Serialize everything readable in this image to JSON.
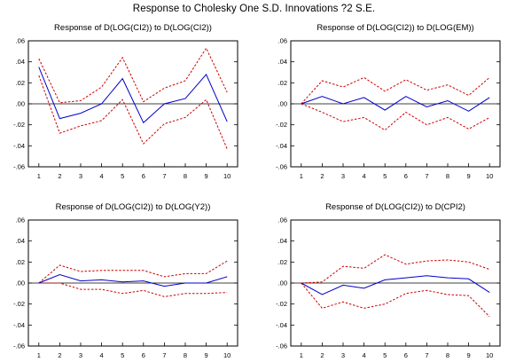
{
  "title": "Response to Cholesky One S.D. Innovations ?2 S.E.",
  "chart_data": [
    {
      "type": "line",
      "title": "Response of D(LOG(CI2)) to D(LOG(CI2))",
      "x": [
        1,
        2,
        3,
        4,
        5,
        6,
        7,
        8,
        9,
        10
      ],
      "x_ticks": [
        "1",
        "2",
        "3",
        "4",
        "5",
        "6",
        "7",
        "8",
        "9",
        "10"
      ],
      "y_ticks": [
        ".06",
        ".04",
        ".02",
        ".00",
        "-.02",
        "-.04",
        "-.06"
      ],
      "ylim": [
        -0.06,
        0.06
      ],
      "grid": false,
      "series": [
        {
          "color": "#0000cc",
          "dashed": false,
          "values": [
            0.035,
            -0.014,
            -0.009,
            0.0,
            0.024,
            -0.018,
            0.0,
            0.005,
            0.028,
            -0.017
          ]
        },
        {
          "color": "#cc0000",
          "dashed": true,
          "values": [
            0.043,
            0.001,
            0.003,
            0.016,
            0.044,
            0.002,
            0.015,
            0.022,
            0.053,
            0.011
          ]
        },
        {
          "color": "#cc0000",
          "dashed": true,
          "values": [
            0.027,
            -0.028,
            -0.021,
            -0.016,
            0.004,
            -0.038,
            -0.019,
            -0.013,
            0.004,
            -0.043
          ]
        }
      ]
    },
    {
      "type": "line",
      "title": "Response of D(LOG(CI2)) to D(LOG(EM))",
      "x": [
        1,
        2,
        3,
        4,
        5,
        6,
        7,
        8,
        9,
        10
      ],
      "x_ticks": [
        "1",
        "2",
        "3",
        "4",
        "5",
        "6",
        "7",
        "8",
        "9",
        "10"
      ],
      "y_ticks": [
        ".06",
        ".04",
        ".02",
        ".00",
        "-.02",
        "-.04",
        "-.06"
      ],
      "ylim": [
        -0.06,
        0.06
      ],
      "grid": false,
      "series": [
        {
          "color": "#0000cc",
          "dashed": false,
          "values": [
            0.0,
            0.007,
            0.0,
            0.006,
            -0.006,
            0.007,
            -0.003,
            0.003,
            -0.007,
            0.006
          ]
        },
        {
          "color": "#cc0000",
          "dashed": true,
          "values": [
            0.0,
            0.022,
            0.016,
            0.025,
            0.012,
            0.023,
            0.013,
            0.018,
            0.008,
            0.025
          ]
        },
        {
          "color": "#cc0000",
          "dashed": true,
          "values": [
            0.0,
            -0.008,
            -0.017,
            -0.013,
            -0.025,
            -0.008,
            -0.02,
            -0.013,
            -0.024,
            -0.013
          ]
        }
      ]
    },
    {
      "type": "line",
      "title": "Response of D(LOG(CI2)) to D(LOG(Y2))",
      "x": [
        1,
        2,
        3,
        4,
        5,
        6,
        7,
        8,
        9,
        10
      ],
      "x_ticks": [
        "1",
        "2",
        "3",
        "4",
        "5",
        "6",
        "7",
        "8",
        "9",
        "10"
      ],
      "y_ticks": [
        ".06",
        ".04",
        ".02",
        ".00",
        "-.02",
        "-.04",
        "-.06"
      ],
      "ylim": [
        -0.06,
        0.06
      ],
      "grid": false,
      "series": [
        {
          "color": "#0000cc",
          "dashed": false,
          "values": [
            0.0,
            0.008,
            0.002,
            0.003,
            0.001,
            0.002,
            -0.003,
            0.0,
            0.0,
            0.006
          ]
        },
        {
          "color": "#cc0000",
          "dashed": true,
          "values": [
            0.0,
            0.017,
            0.011,
            0.012,
            0.012,
            0.012,
            0.006,
            0.009,
            0.009,
            0.021
          ]
        },
        {
          "color": "#cc0000",
          "dashed": true,
          "values": [
            0.0,
            0.0,
            -0.006,
            -0.006,
            -0.01,
            -0.007,
            -0.013,
            -0.01,
            -0.01,
            -0.009
          ]
        }
      ]
    },
    {
      "type": "line",
      "title": "Response of D(LOG(CI2)) to D(CPI2)",
      "x": [
        1,
        2,
        3,
        4,
        5,
        6,
        7,
        8,
        9,
        10
      ],
      "x_ticks": [
        "1",
        "2",
        "3",
        "4",
        "5",
        "6",
        "7",
        "8",
        "9",
        "10"
      ],
      "y_ticks": [
        ".06",
        ".04",
        ".02",
        ".00",
        "-.02",
        "-.04",
        "-.06"
      ],
      "ylim": [
        -0.06,
        0.06
      ],
      "grid": false,
      "series": [
        {
          "color": "#0000cc",
          "dashed": false,
          "values": [
            0.0,
            -0.011,
            -0.002,
            -0.005,
            0.003,
            0.005,
            0.007,
            0.005,
            0.004,
            -0.009
          ]
        },
        {
          "color": "#cc0000",
          "dashed": true,
          "values": [
            0.0,
            0.001,
            0.016,
            0.014,
            0.027,
            0.018,
            0.021,
            0.022,
            0.02,
            0.013
          ]
        },
        {
          "color": "#cc0000",
          "dashed": true,
          "values": [
            0.0,
            -0.024,
            -0.018,
            -0.024,
            -0.02,
            -0.01,
            -0.007,
            -0.011,
            -0.012,
            -0.032
          ]
        }
      ]
    }
  ]
}
